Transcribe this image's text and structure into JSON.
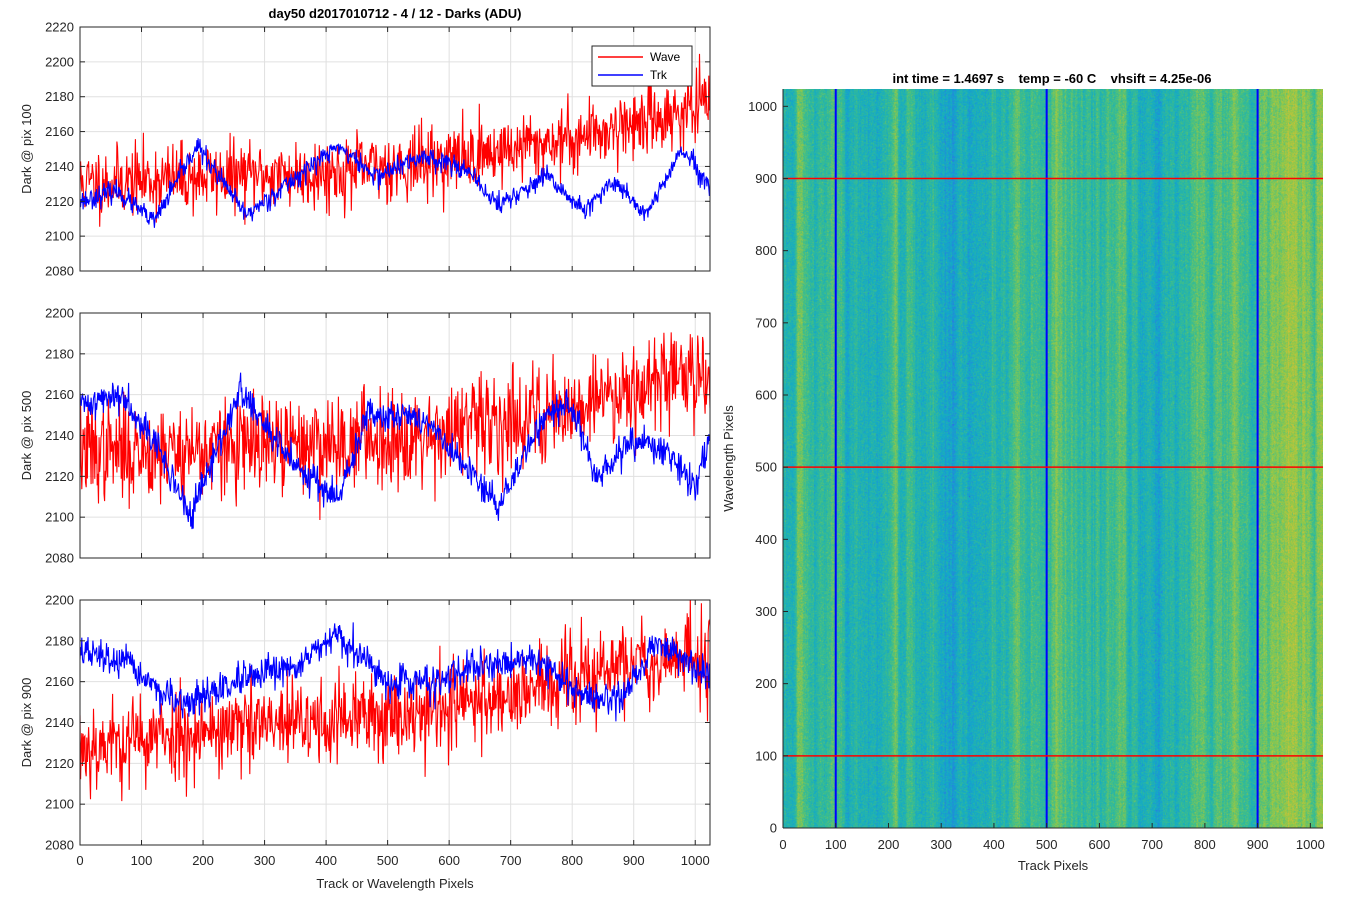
{
  "figure": {
    "title": "day50 d2017010712 - 4 / 12 - Darks (ADU)",
    "image_title": "int time = 1.4697 s    temp = -60 C    vhsift = 4.25e-06",
    "shared_xlabel": "Track or Wavelength Pixels"
  },
  "legend": {
    "entries": [
      {
        "label": "Wave",
        "color": "#ff0000"
      },
      {
        "label": "Trk",
        "color": "#0000ff"
      }
    ],
    "placement": "top-right of first panel"
  },
  "colors": {
    "wave": "#ff0000",
    "trk": "#0000ff",
    "grid": "#e0e0e0",
    "axis": "#262626"
  },
  "chart_data": [
    {
      "type": "line",
      "ylabel": "Dark @ pix 100",
      "xlabel": "",
      "xlim": [
        0,
        1024
      ],
      "ylim": [
        2080,
        2220
      ],
      "xticks": [
        0,
        100,
        200,
        300,
        400,
        500,
        600,
        700,
        800,
        900,
        1000
      ],
      "yticks": [
        2080,
        2100,
        2120,
        2140,
        2160,
        2180,
        2200,
        2220
      ],
      "grid": true,
      "series": [
        {
          "name": "Wave",
          "color": "#ff0000",
          "noise": 10,
          "seed": 11,
          "trend": [
            [
              0,
              2130
            ],
            [
              200,
              2134
            ],
            [
              400,
              2136
            ],
            [
              600,
              2144
            ],
            [
              800,
              2156
            ],
            [
              900,
              2165
            ],
            [
              1024,
              2175
            ]
          ]
        },
        {
          "name": "Trk",
          "color": "#0000ff",
          "noise": 3,
          "seed": 23,
          "trend": [
            [
              0,
              2120
            ],
            [
              60,
              2126
            ],
            [
              120,
              2108
            ],
            [
              190,
              2152
            ],
            [
              270,
              2112
            ],
            [
              330,
              2128
            ],
            [
              420,
              2152
            ],
            [
              480,
              2134
            ],
            [
              560,
              2146
            ],
            [
              620,
              2140
            ],
            [
              680,
              2118
            ],
            [
              760,
              2134
            ],
            [
              820,
              2114
            ],
            [
              870,
              2132
            ],
            [
              920,
              2112
            ],
            [
              980,
              2150
            ],
            [
              1024,
              2126
            ]
          ]
        }
      ]
    },
    {
      "type": "line",
      "ylabel": "Dark @ pix 500",
      "xlabel": "",
      "xlim": [
        0,
        1024
      ],
      "ylim": [
        2080,
        2200
      ],
      "xticks": [
        0,
        100,
        200,
        300,
        400,
        500,
        600,
        700,
        800,
        900,
        1000
      ],
      "yticks": [
        2080,
        2100,
        2120,
        2140,
        2160,
        2180,
        2200
      ],
      "grid": true,
      "series": [
        {
          "name": "Wave",
          "color": "#ff0000",
          "noise": 12,
          "seed": 37,
          "trend": [
            [
              0,
              2132
            ],
            [
              200,
              2133
            ],
            [
              400,
              2136
            ],
            [
              600,
              2142
            ],
            [
              800,
              2154
            ],
            [
              900,
              2165
            ],
            [
              1024,
              2172
            ]
          ]
        },
        {
          "name": "Trk",
          "color": "#0000ff",
          "noise": 4,
          "seed": 41,
          "trend": [
            [
              0,
              2155
            ],
            [
              70,
              2160
            ],
            [
              120,
              2138
            ],
            [
              180,
              2100
            ],
            [
              260,
              2162
            ],
            [
              330,
              2132
            ],
            [
              420,
              2108
            ],
            [
              470,
              2152
            ],
            [
              560,
              2148
            ],
            [
              620,
              2126
            ],
            [
              680,
              2106
            ],
            [
              760,
              2152
            ],
            [
              800,
              2154
            ],
            [
              840,
              2118
            ],
            [
              900,
              2138
            ],
            [
              960,
              2130
            ],
            [
              1000,
              2115
            ],
            [
              1024,
              2140
            ]
          ]
        }
      ]
    },
    {
      "type": "line",
      "ylabel": "Dark @ pix 900",
      "xlabel": "Track or Wavelength Pixels",
      "xlim": [
        0,
        1024
      ],
      "ylim": [
        2080,
        2200
      ],
      "xticks": [
        0,
        100,
        200,
        300,
        400,
        500,
        600,
        700,
        800,
        900,
        1000
      ],
      "yticks": [
        2080,
        2100,
        2120,
        2140,
        2160,
        2180,
        2200
      ],
      "grid": true,
      "series": [
        {
          "name": "Wave",
          "color": "#ff0000",
          "noise": 11,
          "seed": 53,
          "trend": [
            [
              0,
              2128
            ],
            [
              200,
              2136
            ],
            [
              400,
              2140
            ],
            [
              600,
              2148
            ],
            [
              800,
              2160
            ],
            [
              900,
              2170
            ],
            [
              1024,
              2172
            ]
          ]
        },
        {
          "name": "Trk",
          "color": "#0000ff",
          "noise": 4,
          "seed": 67,
          "trend": [
            [
              0,
              2175
            ],
            [
              80,
              2168
            ],
            [
              160,
              2148
            ],
            [
              260,
              2160
            ],
            [
              340,
              2166
            ],
            [
              420,
              2182
            ],
            [
              500,
              2160
            ],
            [
              580,
              2160
            ],
            [
              660,
              2168
            ],
            [
              740,
              2172
            ],
            [
              820,
              2152
            ],
            [
              880,
              2152
            ],
            [
              940,
              2180
            ],
            [
              1024,
              2162
            ]
          ]
        }
      ]
    },
    {
      "type": "heatmap",
      "title": "int time = 1.4697 s    temp = -60 C    vhsift = 4.25e-06",
      "xlabel": "Track Pixels",
      "ylabel": "Wavelength Pixels",
      "xlim": [
        0,
        1024
      ],
      "ylim": [
        0,
        1024
      ],
      "xticks": [
        0,
        100,
        200,
        300,
        400,
        500,
        600,
        700,
        800,
        900,
        1000
      ],
      "yticks": [
        0,
        100,
        200,
        300,
        400,
        500,
        600,
        700,
        800,
        900,
        1000
      ],
      "grid": false,
      "colormap": "parula",
      "vertical_markers": {
        "x": [
          100,
          500,
          900
        ],
        "color": "#0000ff"
      },
      "horizontal_markers": {
        "y": [
          100,
          500,
          900
        ],
        "color": "#ff0000"
      }
    }
  ]
}
